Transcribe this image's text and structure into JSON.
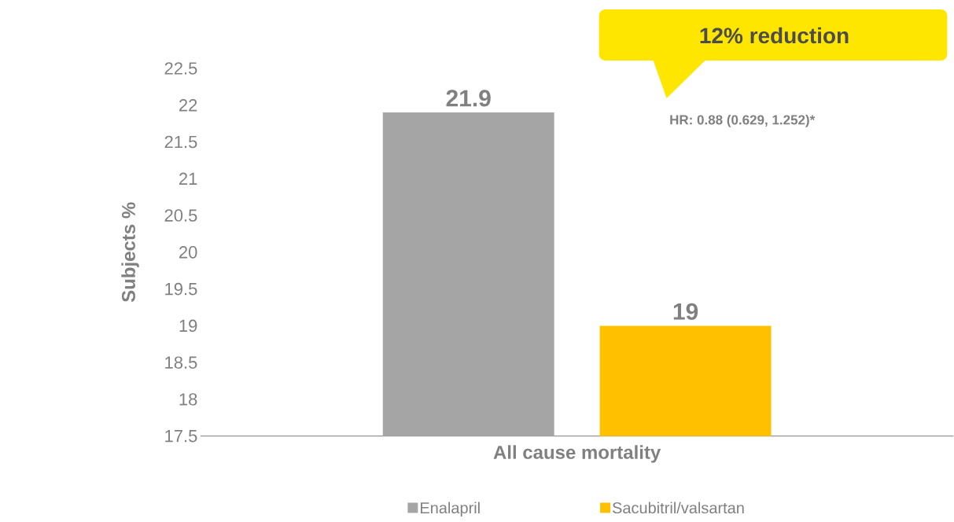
{
  "chart_data": {
    "type": "bar",
    "categories": [
      "All cause mortality"
    ],
    "series": [
      {
        "name": "Enalapril",
        "color": "#a5a5a5",
        "values": [
          21.9
        ]
      },
      {
        "name": "Sacubitril/valsartan",
        "color": "#ffc000",
        "values": [
          19
        ]
      }
    ],
    "ylabel": "Subjects %",
    "ylim": [
      17.5,
      22.5
    ],
    "yticks": [
      17.5,
      18,
      18.5,
      19,
      19.5,
      20,
      20.5,
      21,
      21.5,
      22,
      22.5
    ],
    "data_labels": true,
    "legend": "bottom",
    "grid": false,
    "annotations": [
      "12% reduction",
      "HR: 0.88 (0.629, 1.252)*"
    ]
  }
}
